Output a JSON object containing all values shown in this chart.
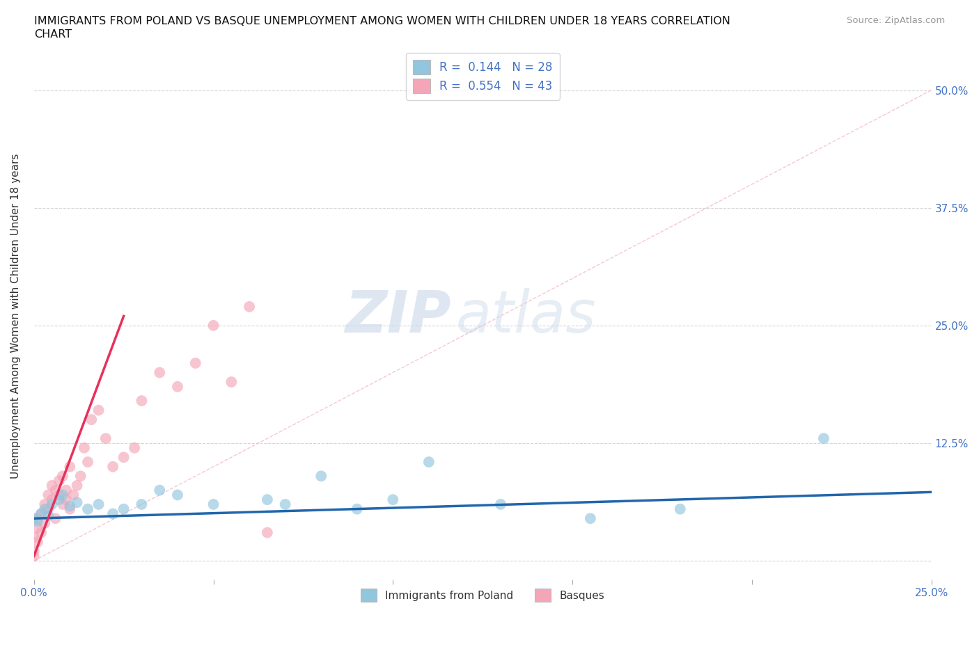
{
  "title_line1": "IMMIGRANTS FROM POLAND VS BASQUE UNEMPLOYMENT AMONG WOMEN WITH CHILDREN UNDER 18 YEARS CORRELATION",
  "title_line2": "CHART",
  "source": "Source: ZipAtlas.com",
  "ylabel": "Unemployment Among Women with Children Under 18 years",
  "xlim": [
    0.0,
    0.25
  ],
  "ylim": [
    -0.02,
    0.54
  ],
  "xtick_positions": [
    0.0,
    0.05,
    0.1,
    0.15,
    0.2,
    0.25
  ],
  "xtick_labels": [
    "0.0%",
    "",
    "",
    "",
    "",
    "25.0%"
  ],
  "ytick_vals": [
    0.0,
    0.125,
    0.25,
    0.375,
    0.5
  ],
  "ytick_right_labels": [
    "",
    "12.5%",
    "25.0%",
    "37.5%",
    "50.0%"
  ],
  "legend_r1": "R =  0.144   N = 28",
  "legend_r2": "R =  0.554   N = 43",
  "legend_label1": "Immigrants from Poland",
  "legend_label2": "Basques",
  "watermark_zip": "ZIP",
  "watermark_atlas": "atlas",
  "background_color": "#ffffff",
  "grid_color": "#cccccc",
  "blue_color": "#92c5de",
  "pink_color": "#f4a6b8",
  "blue_line_color": "#2166ac",
  "pink_line_color": "#e8305a",
  "diag_color": "#f4b8c8",
  "blue_scatter_x": [
    0.0,
    0.001,
    0.002,
    0.003,
    0.004,
    0.005,
    0.007,
    0.008,
    0.01,
    0.012,
    0.015,
    0.018,
    0.022,
    0.025,
    0.03,
    0.035,
    0.04,
    0.05,
    0.065,
    0.07,
    0.08,
    0.09,
    0.1,
    0.11,
    0.13,
    0.155,
    0.18,
    0.22
  ],
  "blue_scatter_y": [
    0.045,
    0.042,
    0.05,
    0.055,
    0.048,
    0.06,
    0.065,
    0.07,
    0.058,
    0.062,
    0.055,
    0.06,
    0.05,
    0.055,
    0.06,
    0.075,
    0.07,
    0.06,
    0.065,
    0.06,
    0.09,
    0.055,
    0.065,
    0.105,
    0.06,
    0.045,
    0.055,
    0.13
  ],
  "pink_scatter_x": [
    0.0,
    0.0,
    0.0,
    0.001,
    0.001,
    0.001,
    0.002,
    0.002,
    0.003,
    0.003,
    0.004,
    0.004,
    0.005,
    0.005,
    0.006,
    0.006,
    0.007,
    0.007,
    0.008,
    0.008,
    0.009,
    0.009,
    0.01,
    0.01,
    0.011,
    0.012,
    0.013,
    0.014,
    0.015,
    0.016,
    0.018,
    0.02,
    0.022,
    0.025,
    0.028,
    0.03,
    0.035,
    0.04,
    0.045,
    0.05,
    0.055,
    0.06,
    0.065
  ],
  "pink_scatter_y": [
    0.005,
    0.01,
    0.025,
    0.02,
    0.035,
    0.045,
    0.03,
    0.05,
    0.04,
    0.06,
    0.055,
    0.07,
    0.065,
    0.08,
    0.075,
    0.045,
    0.07,
    0.085,
    0.06,
    0.09,
    0.075,
    0.065,
    0.1,
    0.055,
    0.07,
    0.08,
    0.09,
    0.12,
    0.105,
    0.15,
    0.16,
    0.13,
    0.1,
    0.11,
    0.12,
    0.17,
    0.2,
    0.185,
    0.21,
    0.25,
    0.19,
    0.27,
    0.03
  ],
  "blue_trend_x": [
    0.0,
    0.25
  ],
  "blue_trend_y": [
    0.045,
    0.073
  ],
  "pink_trend_x": [
    0.0,
    0.025
  ],
  "pink_trend_y": [
    0.005,
    0.26
  ],
  "diag_line_x": [
    0.0,
    0.25
  ],
  "diag_line_y": [
    0.0,
    0.5
  ]
}
